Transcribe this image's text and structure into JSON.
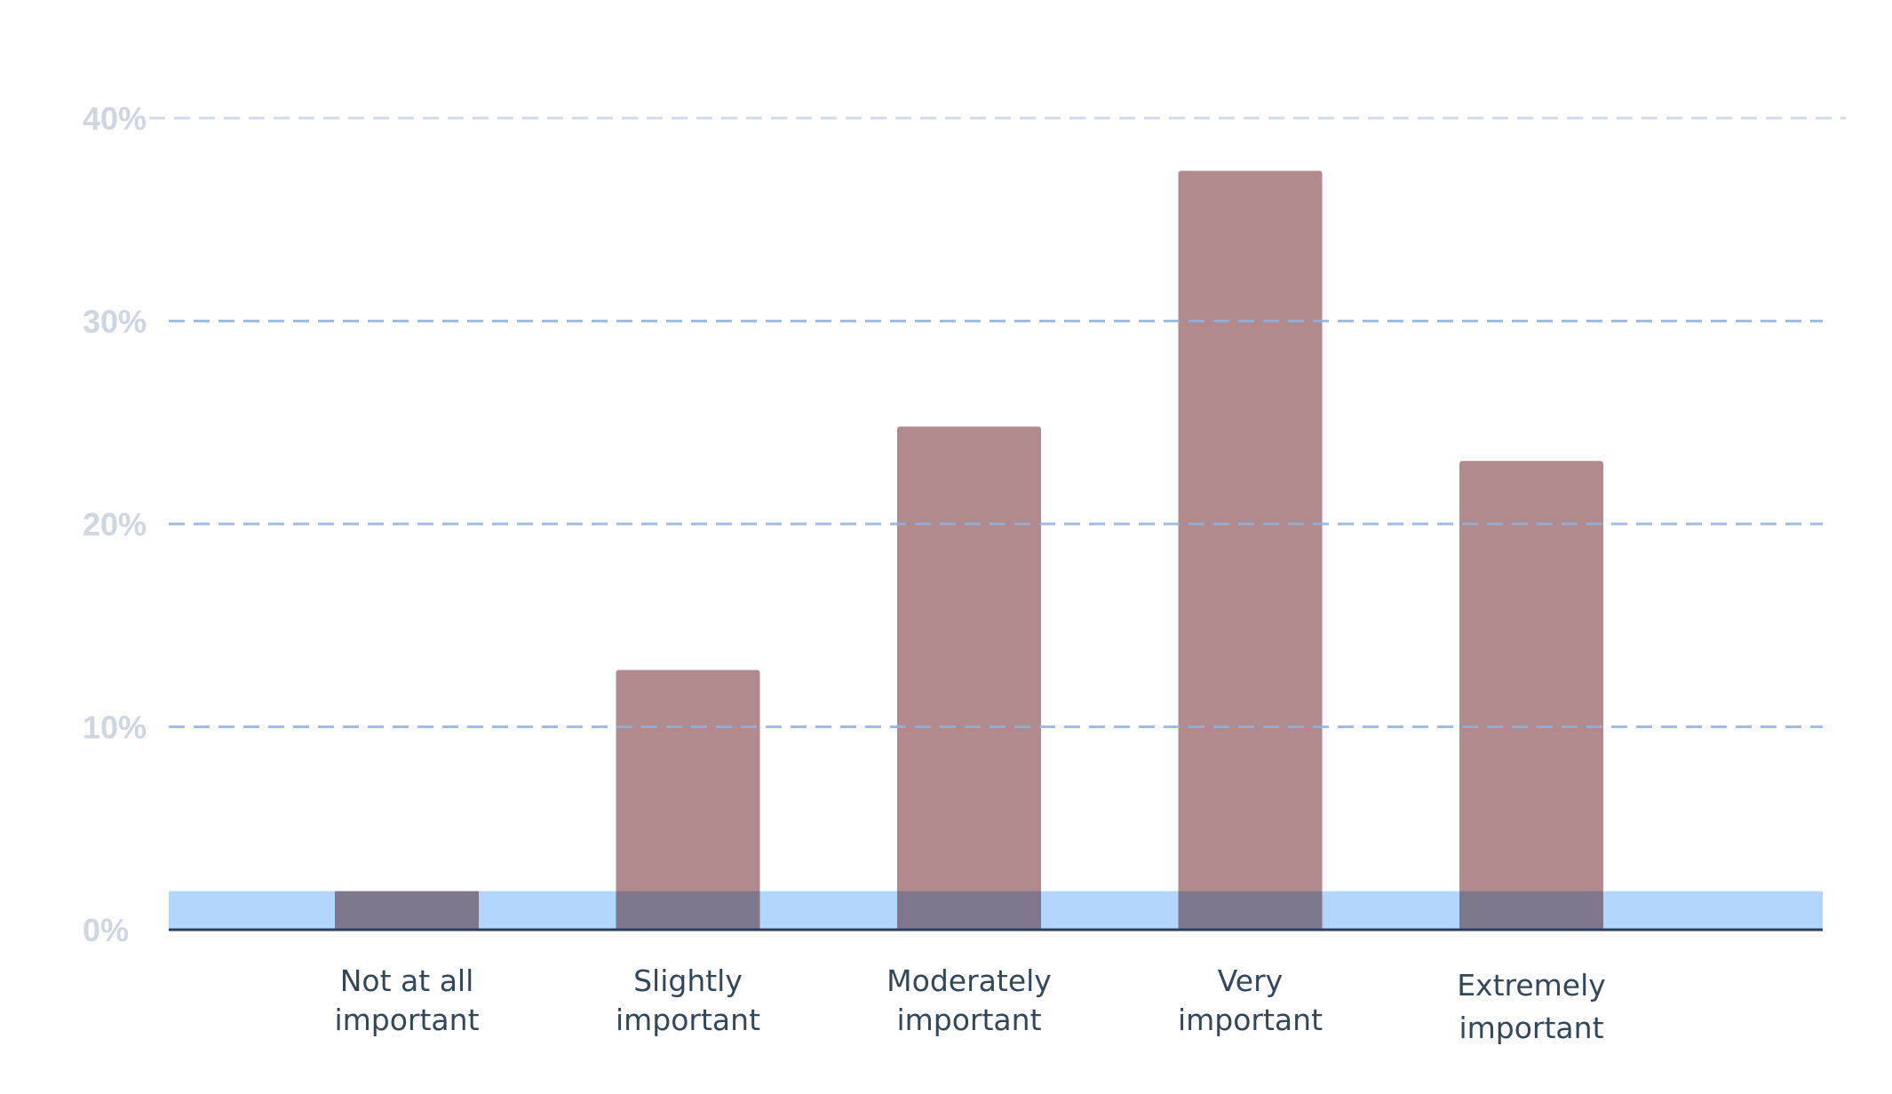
{
  "chart_data": {
    "type": "bar",
    "title": "",
    "xlabel": "",
    "ylabel": "",
    "categories": [
      [
        "Not at all",
        "important"
      ],
      [
        "Slightly",
        "important"
      ],
      [
        "Moderately",
        "important"
      ],
      [
        "Very",
        "important"
      ],
      [
        "Extremely",
        "important"
      ]
    ],
    "values": [
      1.9,
      12.8,
      24.8,
      37.4,
      23.1
    ],
    "ylim": [
      0,
      40
    ],
    "yticks": [
      0,
      10,
      20,
      30,
      40
    ],
    "ytick_labels": [
      "0%",
      "10%",
      "20%",
      "30%",
      "40%"
    ],
    "grid": true,
    "legend": "none",
    "baseline_band_value": 1.9
  },
  "colors": {
    "bar": "#b08a8d",
    "bar_overlap": "#7f788c",
    "baseline_band": "#b3d6fd",
    "grid_line": "#8fb2e0",
    "grid_line_top": "#c8d4e4",
    "axis_line": "#2b3f5c",
    "y_tick_label": "#cdd6e1",
    "x_tick_label": "#33475b"
  }
}
